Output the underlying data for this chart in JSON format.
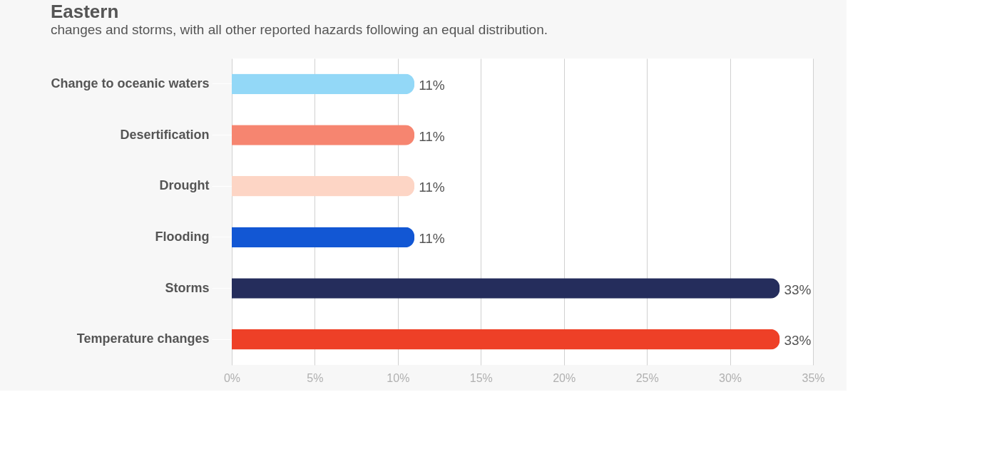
{
  "chart_data": {
    "type": "bar",
    "orientation": "horizontal",
    "title": "Eastern",
    "annotations": [
      "changes and storms, with all other reported hazards following an equal distribution."
    ],
    "categories": [
      "Change to oceanic waters",
      "Desertification",
      "Drought",
      "Flooding",
      "Storms",
      "Temperature changes"
    ],
    "values": [
      11,
      11,
      11,
      11,
      33,
      33
    ],
    "colors": [
      "#93d8f7",
      "#f68570",
      "#fdd5c5",
      "#1257d4",
      "#252d5c",
      "#ee4027"
    ],
    "value_labels": [
      "11%",
      "11%",
      "11%",
      "11%",
      "33%",
      "33%"
    ],
    "xlim": [
      0,
      35
    ],
    "xticks": [
      {
        "value": 0,
        "label": "0%"
      },
      {
        "value": 5,
        "label": "5%"
      },
      {
        "value": 10,
        "label": "10%"
      },
      {
        "value": 15,
        "label": "15%"
      },
      {
        "value": 20,
        "label": "20%"
      },
      {
        "value": 25,
        "label": "25%"
      },
      {
        "value": 30,
        "label": "30%"
      },
      {
        "value": 35,
        "label": "35%"
      }
    ],
    "grid": "x"
  }
}
